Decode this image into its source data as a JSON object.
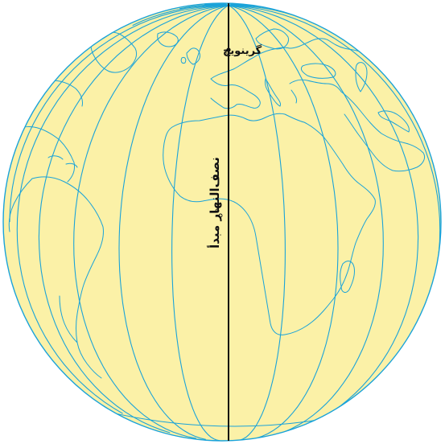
{
  "map": {
    "labels": {
      "greenwich": "گرینویچ",
      "prime_meridian": "نصف‌النهار مبدأ"
    },
    "colors": {
      "ocean_fill": "#fbf1a7",
      "grid_lines": "#1aa3d9",
      "coastlines": "#1aa3d9",
      "prime_meridian": "#111111",
      "marker": "#111111"
    },
    "features": {
      "meridians": "longitude lines every 15 degrees",
      "prime_meridian_highlighted": true
    }
  }
}
